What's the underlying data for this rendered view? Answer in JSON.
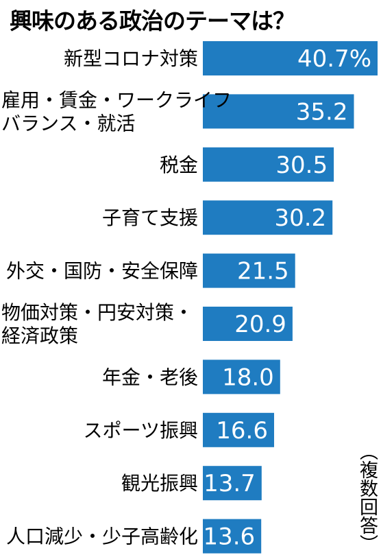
{
  "title": "興味のある政治のテーマは？",
  "note": "（複数回答）",
  "colors": {
    "bar": "#1f7cc1",
    "text": "#000000",
    "value_text": "#ffffff"
  },
  "chart_data": {
    "type": "bar",
    "orientation": "horizontal",
    "title": "興味のある政治のテーマは？",
    "unit": "%",
    "categories": [
      [
        "新型コロナ対策"
      ],
      [
        "雇用・賃金・ワークライフ",
        "バランス・就活"
      ],
      [
        "税金"
      ],
      [
        "子育て支援"
      ],
      [
        "外交・国防・安全保障"
      ],
      [
        "物価対策・円安対策・",
        "経済政策"
      ],
      [
        "年金・老後"
      ],
      [
        "スポーツ振興"
      ],
      [
        "観光振興"
      ],
      [
        "人口減少・少子高齢化"
      ]
    ],
    "values": [
      40.7,
      35.2,
      30.5,
      30.2,
      21.5,
      20.9,
      18.0,
      16.6,
      13.7,
      13.6
    ],
    "value_labels": [
      "40.7%",
      "35.2",
      "30.5",
      "30.2",
      "21.5",
      "20.9",
      "18.0",
      "16.6",
      "13.7",
      "13.6"
    ],
    "xlim": [
      0,
      40.7
    ],
    "grid": false,
    "legend": "none"
  }
}
